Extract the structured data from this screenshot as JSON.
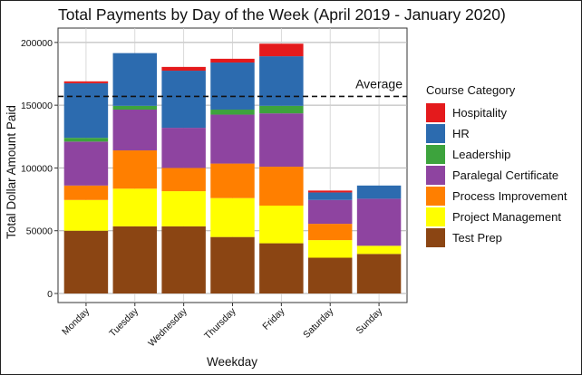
{
  "chart_data": {
    "type": "bar",
    "stacked": true,
    "title": "Total Payments by Day of the Week (April 2019 - January 2020)",
    "xlabel": "Weekday",
    "ylabel": "Total Dollar Amount Paid",
    "ylim": [
      0,
      210000
    ],
    "yticks": [
      0,
      50000,
      100000,
      150000,
      200000
    ],
    "ytick_labels": [
      "0",
      "50000",
      "100000",
      "150000",
      "200000"
    ],
    "grid": true,
    "legend_title": "Course Category",
    "legend_position": "right",
    "categories": [
      "Monday",
      "Tuesday",
      "Wednesday",
      "Thursday",
      "Friday",
      "Saturday",
      "Sunday"
    ],
    "series": [
      {
        "name": "Test Prep",
        "color": "#8B4513",
        "values": [
          50000,
          53500,
          53500,
          45000,
          40000,
          28500,
          31500
        ]
      },
      {
        "name": "Project Management",
        "color": "#FFFF00",
        "values": [
          24500,
          30000,
          28000,
          31000,
          30000,
          14000,
          6500
        ]
      },
      {
        "name": "Process Improvement",
        "color": "#FF7F00",
        "values": [
          11500,
          30500,
          18500,
          27500,
          31000,
          13000,
          0
        ]
      },
      {
        "name": "Paralegal Certificate",
        "color": "#8E44A0",
        "values": [
          35000,
          32500,
          32000,
          39000,
          42500,
          19000,
          37500
        ]
      },
      {
        "name": "Leadership",
        "color": "#3DA33D",
        "values": [
          3000,
          3000,
          0,
          4000,
          6000,
          0,
          0
        ]
      },
      {
        "name": "HR",
        "color": "#2C6BAF",
        "values": [
          43500,
          42000,
          45500,
          37500,
          39500,
          6000,
          10500
        ]
      },
      {
        "name": "Hospitality",
        "color": "#E41A1C",
        "values": [
          1500,
          0,
          3000,
          3000,
          10000,
          1500,
          0
        ]
      }
    ],
    "average": {
      "label": "Average",
      "value": 157000
    }
  }
}
